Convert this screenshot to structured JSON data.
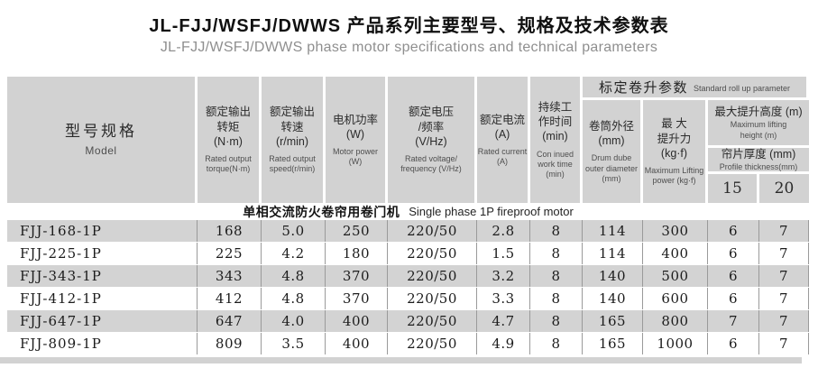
{
  "title": {
    "cn": "JL-FJJ/WSFJ/DWWS 产品系列主要型号、规格及技术参数表",
    "en": "JL-FJJ/WSFJ/DWWS  phase motor specifications and technical parameters"
  },
  "table": {
    "header": {
      "model": {
        "cn": "型号规格",
        "en": "Model"
      },
      "torque": {
        "cn": "额定输出\n转矩\n(N·m)",
        "en": "Rated output\ntorque(N·m)"
      },
      "speed": {
        "cn": "额定输出\n转速\n(r/min)",
        "en": "Rated output\nspeed(r/min)"
      },
      "motor_power": {
        "cn": "电机功率\n(W)",
        "en": "Motor power\n(W)"
      },
      "voltage": {
        "cn": "额定电压\n/频率\n(V/Hz)",
        "en": "Rated voltage/\nfrequency (V/Hz)"
      },
      "current": {
        "cn": "额定电流\n(A)",
        "en": "Rated current\n(A)"
      },
      "work_time": {
        "cn": "持续工\n作时间\n(min)",
        "en": "Con inued\nwork time\n(min)"
      },
      "rollup_group": {
        "cn": "标定卷升参数",
        "en": "Standard roll up parameter"
      },
      "drum": {
        "cn": "卷筒外径\n(mm)",
        "en": "Drum dube\nouter diameter\n(mm)"
      },
      "lift_power": {
        "cn": "最  大\n提升力\n(kg·f)",
        "en": "Maximum Lifting\npower (kg·f)"
      },
      "lift_height": {
        "cn": "最大提升高度 (m)",
        "en": "Maximum lifting\nheight (m)"
      },
      "thickness": {
        "cn": "帘片厚度 (mm)",
        "en": "Profile thickness(mm)"
      },
      "thickness_15": "15",
      "thickness_20": "20"
    },
    "section": {
      "cn": "单相交流防火卷帘用卷门机",
      "en": "Single phase 1P fireproof motor"
    },
    "rows": [
      [
        "FJJ-168-1P",
        "168",
        "5.0",
        "250",
        "220/50",
        "2.8",
        "8",
        "114",
        "300",
        "6",
        "7"
      ],
      [
        "FJJ-225-1P",
        "225",
        "4.2",
        "180",
        "220/50",
        "1.5",
        "8",
        "114",
        "400",
        "6",
        "7"
      ],
      [
        "FJJ-343-1P",
        "343",
        "4.8",
        "370",
        "220/50",
        "3.2",
        "8",
        "140",
        "500",
        "6",
        "7"
      ],
      [
        "FJJ-412-1P",
        "412",
        "4.8",
        "370",
        "220/50",
        "3.3",
        "8",
        "140",
        "600",
        "6",
        "7"
      ],
      [
        "FJJ-647-1P",
        "647",
        "4.0",
        "400",
        "220/50",
        "4.7",
        "8",
        "165",
        "800",
        "7",
        "7"
      ],
      [
        "FJJ-809-1P",
        "809",
        "3.5",
        "400",
        "220/50",
        "4.9",
        "8",
        "165",
        "1000",
        "6",
        "7"
      ]
    ]
  },
  "colors": {
    "header_bg": "#d2d2d2",
    "row_shaded": "#d3d3d3",
    "grid_line": "#9a9a9a",
    "subtitle_text": "#8f8f8f"
  }
}
